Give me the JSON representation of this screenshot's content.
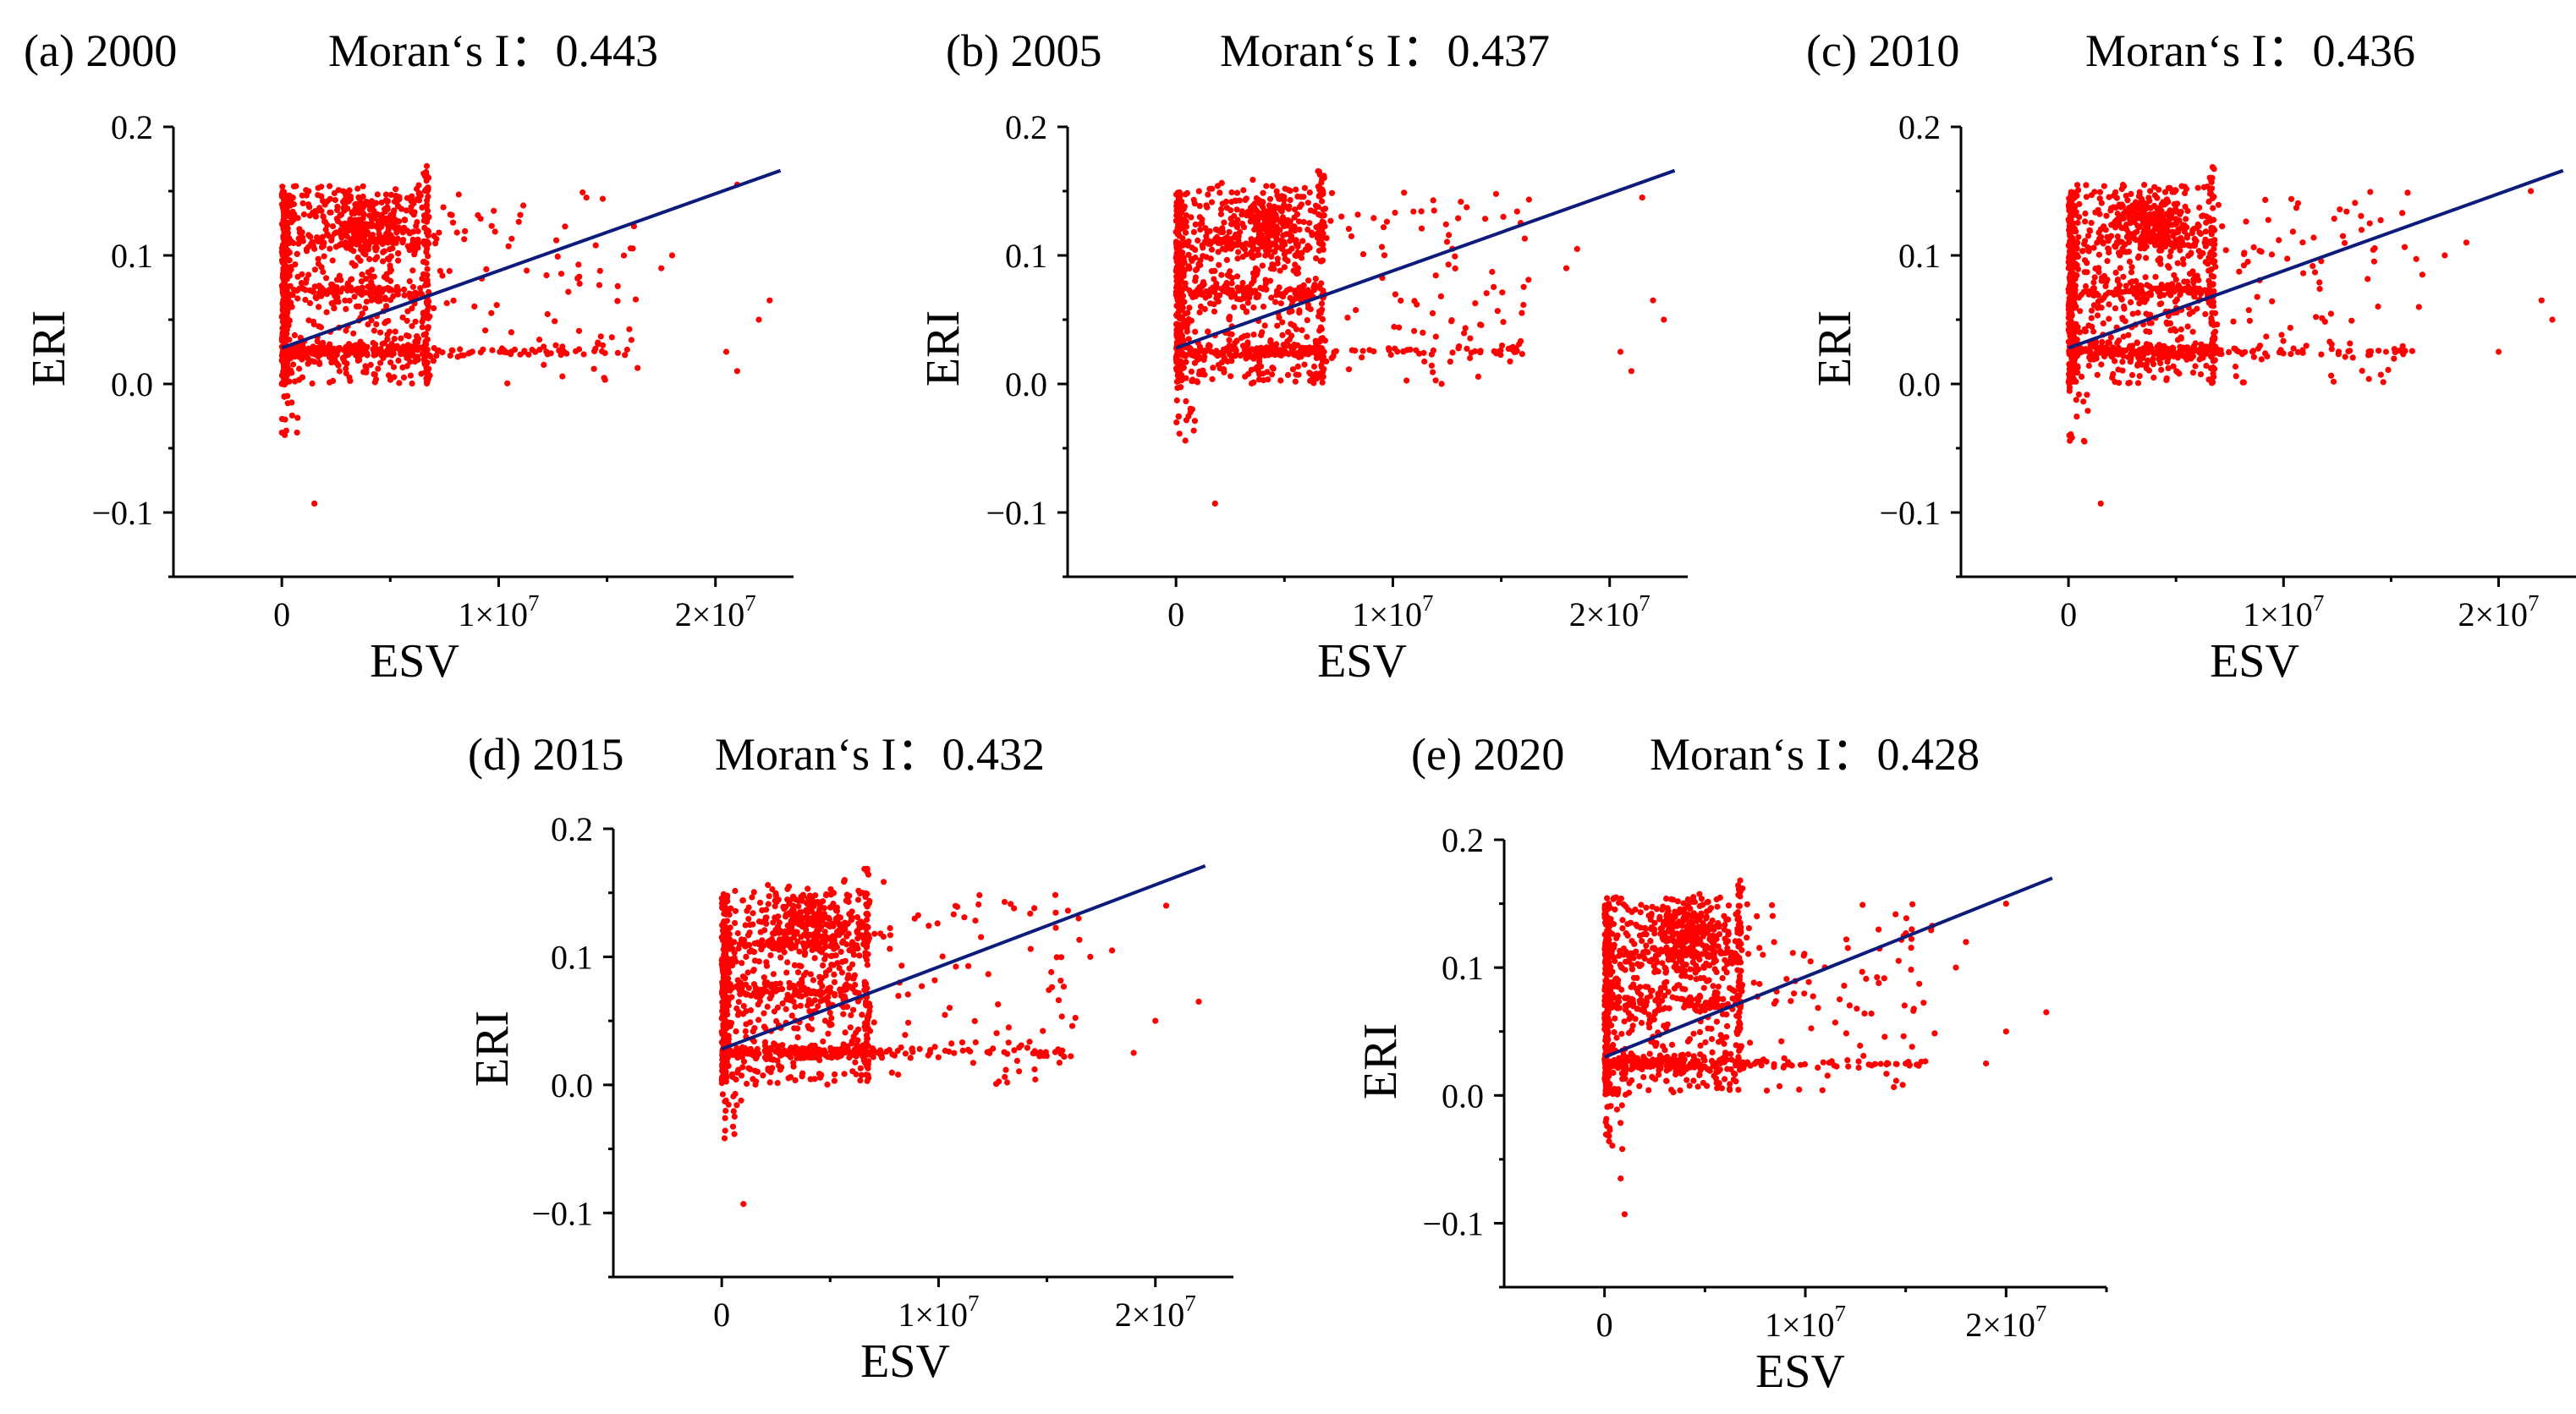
{
  "chart_data": [
    {
      "type": "scatter",
      "panel": "(a) 2000",
      "moran": "Moran‘s I：0.443",
      "xlabel": "ESV",
      "ylabel": "ERI",
      "xlim": [
        -5000000,
        23600000
      ],
      "ylim": [
        -0.15,
        0.2
      ],
      "xticks": [
        {
          "v": 0,
          "label": "0",
          "exp": ""
        },
        {
          "v": 10000000,
          "label": "1×10",
          "exp": "7"
        },
        {
          "v": 20000000,
          "label": "2×10",
          "exp": "7"
        }
      ],
      "yticks": [
        {
          "v": -0.1,
          "label": "−0.1"
        },
        {
          "v": 0.0,
          "label": "0.0"
        },
        {
          "v": 0.1,
          "label": "0.1"
        },
        {
          "v": 0.2,
          "label": "0.2"
        }
      ],
      "series_color": "#ff0000",
      "fit_line_color": "#0d1b7a",
      "fit_line": {
        "x": [
          0,
          23000000
        ],
        "y": [
          0.028,
          0.166
        ]
      },
      "seed": 11,
      "extra_points": [
        [
          1500000,
          -0.093
        ],
        [
          21000000,
          0.155
        ],
        [
          22000000,
          0.05
        ],
        [
          22500000,
          0.065
        ],
        [
          21000000,
          0.01
        ],
        [
          20500000,
          0.025
        ],
        [
          18000000,
          0.1
        ],
        [
          17500000,
          0.09
        ]
      ]
    },
    {
      "type": "scatter",
      "panel": "(b) 2005",
      "moran": "Moran‘s I：0.437",
      "xlabel": "ESV",
      "ylabel": "ERI",
      "xlim": [
        -5000000,
        23600000
      ],
      "ylim": [
        -0.15,
        0.2
      ],
      "xticks": [
        {
          "v": 0,
          "label": "0",
          "exp": ""
        },
        {
          "v": 10000000,
          "label": "1×10",
          "exp": "7"
        },
        {
          "v": 20000000,
          "label": "2×10",
          "exp": "7"
        }
      ],
      "yticks": [
        {
          "v": -0.1,
          "label": "−0.1"
        },
        {
          "v": 0.0,
          "label": "0.0"
        },
        {
          "v": 0.1,
          "label": "0.1"
        },
        {
          "v": 0.2,
          "label": "0.2"
        }
      ],
      "series_color": "#ff0000",
      "fit_line_color": "#0d1b7a",
      "fit_line": {
        "x": [
          0,
          23000000
        ],
        "y": [
          0.028,
          0.166
        ]
      },
      "seed": 23,
      "extra_points": [
        [
          1800000,
          -0.093
        ],
        [
          21500000,
          0.145
        ],
        [
          22500000,
          0.05
        ],
        [
          22000000,
          0.065
        ],
        [
          21000000,
          0.01
        ],
        [
          20500000,
          0.025
        ],
        [
          18500000,
          0.105
        ],
        [
          18000000,
          0.09
        ]
      ]
    },
    {
      "type": "scatter",
      "panel": "(c) 2010",
      "moran": "Moran‘s I：0.436",
      "xlabel": "ESV",
      "ylabel": "ERI",
      "xlim": [
        -5000000,
        23600000
      ],
      "ylim": [
        -0.15,
        0.2
      ],
      "xticks": [
        {
          "v": 0,
          "label": "0",
          "exp": ""
        },
        {
          "v": 10000000,
          "label": "1×10",
          "exp": "7"
        },
        {
          "v": 20000000,
          "label": "2×10",
          "exp": "7"
        }
      ],
      "yticks": [
        {
          "v": -0.1,
          "label": "−0.1"
        },
        {
          "v": 0.0,
          "label": "0.0"
        },
        {
          "v": 0.1,
          "label": "0.1"
        },
        {
          "v": 0.2,
          "label": "0.2"
        }
      ],
      "series_color": "#ff0000",
      "fit_line_color": "#0d1b7a",
      "fit_line": {
        "x": [
          0,
          23000000
        ],
        "y": [
          0.028,
          0.166
        ]
      },
      "seed": 37,
      "extra_points": [
        [
          1500000,
          -0.093
        ],
        [
          21500000,
          0.15
        ],
        [
          22500000,
          0.05
        ],
        [
          22000000,
          0.065
        ],
        [
          20000000,
          0.025
        ],
        [
          18500000,
          0.11
        ],
        [
          17500000,
          0.1
        ]
      ]
    },
    {
      "type": "scatter",
      "panel": "(d) 2015",
      "moran": "Moran‘s I：0.432",
      "xlabel": "ESV",
      "ylabel": "ERI",
      "xlim": [
        -5000000,
        23600000
      ],
      "ylim": [
        -0.15,
        0.2
      ],
      "xticks": [
        {
          "v": 0,
          "label": "0",
          "exp": ""
        },
        {
          "v": 10000000,
          "label": "1×10",
          "exp": "7"
        },
        {
          "v": 20000000,
          "label": "2×10",
          "exp": "7"
        }
      ],
      "yticks": [
        {
          "v": -0.1,
          "label": "−0.1"
        },
        {
          "v": 0.0,
          "label": "0.0"
        },
        {
          "v": 0.1,
          "label": "0.1"
        },
        {
          "v": 0.2,
          "label": "0.2"
        }
      ],
      "series_color": "#ff0000",
      "fit_line_color": "#0d1b7a",
      "fit_line": {
        "x": [
          0,
          22300000
        ],
        "y": [
          0.028,
          0.171
        ]
      },
      "seed": 51,
      "extra_points": [
        [
          1000000,
          -0.093
        ],
        [
          20500000,
          0.14
        ],
        [
          22000000,
          0.065
        ],
        [
          20000000,
          0.05
        ],
        [
          19000000,
          0.025
        ],
        [
          18000000,
          0.105
        ],
        [
          17000000,
          0.1
        ]
      ]
    },
    {
      "type": "scatter",
      "panel": "(e) 2020",
      "moran": "Moran‘s I：0.428",
      "xlabel": "ESV",
      "ylabel": "ERI",
      "xlim": [
        -5000000,
        25000000
      ],
      "ylim": [
        -0.15,
        0.2
      ],
      "xticks": [
        {
          "v": 0,
          "label": "0",
          "exp": ""
        },
        {
          "v": 10000000,
          "label": "1×10",
          "exp": "7"
        },
        {
          "v": 20000000,
          "label": "2×10",
          "exp": "7"
        }
      ],
      "yticks": [
        {
          "v": -0.1,
          "label": "−0.1"
        },
        {
          "v": 0.0,
          "label": "0.0"
        },
        {
          "v": 0.1,
          "label": "0.1"
        },
        {
          "v": 0.2,
          "label": "0.2"
        }
      ],
      "series_color": "#ff0000",
      "fit_line_color": "#0d1b7a",
      "fit_line": {
        "x": [
          0,
          22300000
        ],
        "y": [
          0.03,
          0.17
        ]
      },
      "seed": 67,
      "extra_points": [
        [
          1000000,
          -0.093
        ],
        [
          20000000,
          0.15
        ],
        [
          22000000,
          0.065
        ],
        [
          20000000,
          0.05
        ],
        [
          19000000,
          0.025
        ],
        [
          18000000,
          0.12
        ],
        [
          17500000,
          0.1
        ],
        [
          800000,
          -0.065
        ]
      ]
    }
  ]
}
